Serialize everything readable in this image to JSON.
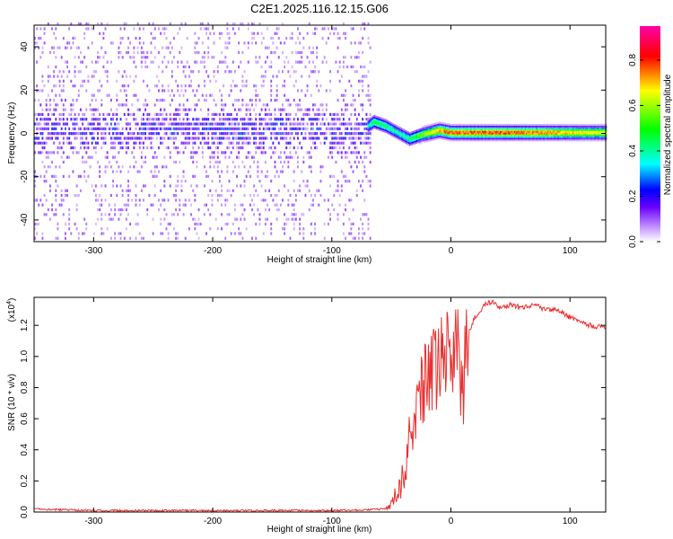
{
  "chart_data": [
    {
      "type": "heatmap",
      "title": "C2E1.2025.116.12.15.G06",
      "xlabel": "Height of straight line (km)",
      "ylabel": "Frequency (Hz)",
      "xlim": [
        -350,
        130
      ],
      "ylim": [
        -50,
        50
      ],
      "xticks": [
        -300,
        -200,
        -100,
        0,
        100
      ],
      "yticks": [
        -40,
        -20,
        0,
        20,
        40
      ],
      "description_of_field": "noisy broadband energy (-50..50 Hz) below -70 km; concentrated band near 0 Hz above -70 km, amplitude increasing to ~0.9 near 0..100 km",
      "ridge": {
        "x": [
          -350,
          -300,
          -250,
          -200,
          -150,
          -100,
          -75,
          -65,
          -55,
          -45,
          -35,
          -25,
          -10,
          0,
          20,
          50,
          80,
          100,
          130
        ],
        "f": [
          0,
          0,
          0,
          0,
          0,
          0,
          1,
          5,
          3,
          0,
          -3,
          -1,
          1,
          0,
          0,
          0,
          0,
          0,
          0
        ],
        "amp": [
          0.22,
          0.22,
          0.22,
          0.22,
          0.22,
          0.24,
          0.3,
          0.55,
          0.5,
          0.45,
          0.5,
          0.65,
          0.85,
          0.88,
          0.9,
          0.9,
          0.85,
          0.8,
          0.75
        ]
      },
      "colorbar": {
        "label": "Normalized spectral amplitude",
        "range": [
          0,
          0.95
        ],
        "ticks": [
          "0.0",
          "0.2",
          "0.4",
          "0.6",
          "0.8"
        ],
        "tick_values": [
          0.0,
          0.2,
          0.4,
          0.6,
          0.8
        ],
        "colormap": [
          "#ffffff",
          "#6a00ff",
          "#0000ff",
          "#00ffff",
          "#00ff00",
          "#ffff00",
          "#ff0000",
          "#ff00aa"
        ]
      }
    },
    {
      "type": "line",
      "title": "",
      "xlabel": "Height of straight line (km)",
      "ylabel": "SNR (10 * v/v)",
      "scale_note": "(x10",
      "scale_exp": "4",
      "xlim": [
        -350,
        130
      ],
      "ylim": [
        0,
        1.38
      ],
      "xticks": [
        -300,
        -200,
        -100,
        0,
        100
      ],
      "yticks": [
        "0.0",
        "0.2",
        "0.4",
        "0.6",
        "0.8",
        "1.0",
        "1.2"
      ],
      "ytick_values": [
        0.0,
        0.2,
        0.4,
        0.6,
        0.8,
        1.0,
        1.2
      ],
      "color": "#e83030",
      "series": [
        {
          "name": "SNR",
          "x": [
            -350,
            -300,
            -250,
            -200,
            -150,
            -100,
            -70,
            -55,
            -50,
            -45,
            -40,
            -35,
            -30,
            -25,
            -20,
            -15,
            -10,
            -5,
            0,
            5,
            10,
            12,
            15,
            20,
            25,
            30,
            35,
            40,
            50,
            60,
            70,
            80,
            90,
            100,
            110,
            120,
            130
          ],
          "y": [
            0.02,
            0.01,
            0.01,
            0.01,
            0.01,
            0.01,
            0.015,
            0.02,
            0.05,
            0.1,
            0.2,
            0.45,
            0.6,
            0.75,
            0.85,
            0.9,
            0.95,
            1.05,
            1.0,
            1.1,
            0.7,
            1.05,
            1.15,
            1.25,
            1.3,
            1.34,
            1.35,
            1.32,
            1.33,
            1.31,
            1.33,
            1.3,
            1.3,
            1.25,
            1.22,
            1.19,
            1.19
          ]
        }
      ]
    }
  ]
}
